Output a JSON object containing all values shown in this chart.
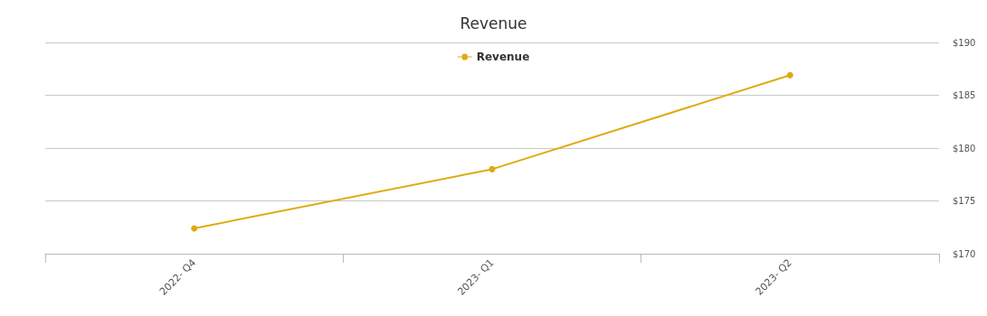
{
  "chart_data": {
    "type": "line",
    "title": "Revenue",
    "categories": [
      "2022- Q4",
      "2023- Q1",
      "2023- Q2"
    ],
    "series": [
      {
        "name": "Revenue",
        "color": "#e1a912",
        "values": [
          172.4,
          178.0,
          186.9
        ]
      }
    ],
    "ylim": [
      170,
      190
    ],
    "yticks": [
      {
        "value": 170,
        "label": "$170"
      },
      {
        "value": 175,
        "label": "$175"
      },
      {
        "value": 180,
        "label": "$180"
      },
      {
        "value": 185,
        "label": "$185"
      },
      {
        "value": 190,
        "label": "$190"
      }
    ],
    "grid": "y",
    "legend": "top",
    "marker": "circle",
    "line_style": "solid"
  }
}
